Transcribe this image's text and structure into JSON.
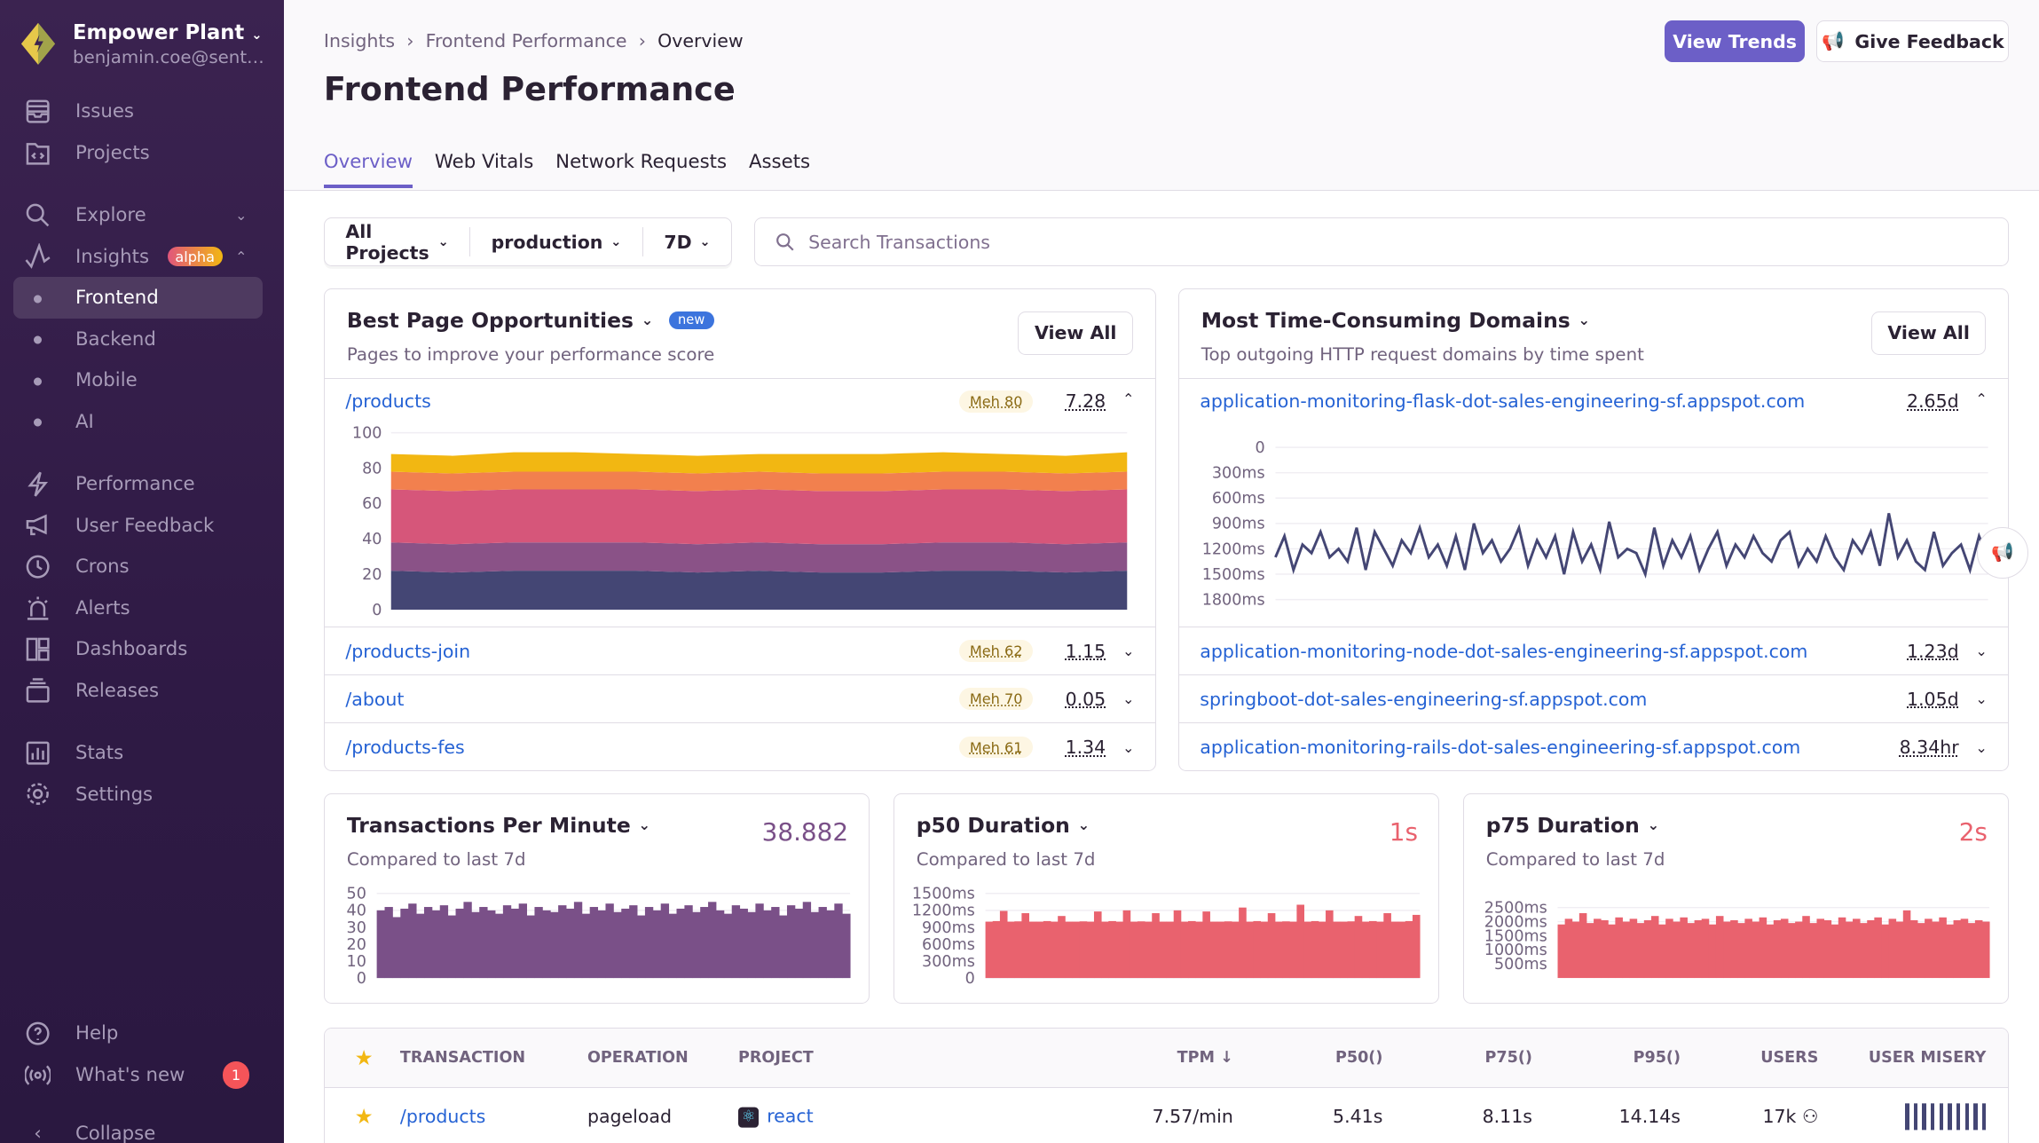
{
  "sidebar": {
    "org_name": "Empower Plant",
    "org_email": "benjamin.coe@sent…",
    "items": [
      {
        "label": "Issues",
        "icon": "inbox-icon"
      },
      {
        "label": "Projects",
        "icon": "folder-code-icon"
      },
      {
        "label": "Explore",
        "icon": "search-icon"
      },
      {
        "label": "Insights",
        "icon": "graph-icon",
        "badge": "alpha"
      },
      {
        "label": "Frontend"
      },
      {
        "label": "Backend"
      },
      {
        "label": "Mobile"
      },
      {
        "label": "AI"
      },
      {
        "label": "Performance",
        "icon": "lightning-icon"
      },
      {
        "label": "User Feedback",
        "icon": "megaphone-icon"
      },
      {
        "label": "Crons",
        "icon": "clock-icon"
      },
      {
        "label": "Alerts",
        "icon": "siren-icon"
      },
      {
        "label": "Dashboards",
        "icon": "dashboard-icon"
      },
      {
        "label": "Releases",
        "icon": "releases-icon"
      },
      {
        "label": "Stats",
        "icon": "stats-icon"
      },
      {
        "label": "Settings",
        "icon": "gear-icon"
      }
    ],
    "help": "Help",
    "whats_new": "What's new",
    "whats_new_count": "1",
    "collapse": "Collapse"
  },
  "header": {
    "breadcrumbs": [
      "Insights",
      "Frontend Performance",
      "Overview"
    ],
    "title": "Frontend Performance",
    "view_trends": "View Trends",
    "give_feedback": "Give Feedback",
    "tabs": [
      "Overview",
      "Web Vitals",
      "Network Requests",
      "Assets"
    ]
  },
  "filters": {
    "project": "All Projects",
    "environment": "production",
    "period": "7D",
    "search_placeholder": "Search Transactions"
  },
  "colors": {
    "accent": "#6c5fc7",
    "link": "#2562d4",
    "tpm": "#7a5088",
    "duration": "#e9626e"
  },
  "page_opportunities": {
    "title": "Best Page Opportunities",
    "badge": "new",
    "subtitle": "Pages to improve your performance score",
    "view_all": "View All",
    "rows": [
      {
        "page": "/products",
        "rating": "Meh 80",
        "score": "7.28",
        "expanded": true
      },
      {
        "page": "/products-join",
        "rating": "Meh 62",
        "score": "1.15"
      },
      {
        "page": "/about",
        "rating": "Meh 70",
        "score": "0.05"
      },
      {
        "page": "/products-fes",
        "rating": "Meh 61",
        "score": "1.34"
      }
    ]
  },
  "domains": {
    "title": "Most Time-Consuming Domains",
    "subtitle": "Top outgoing HTTP request domains by time spent",
    "view_all": "View All",
    "rows": [
      {
        "domain": "application-monitoring-flask-dot-sales-engineering-sf.appspot.com",
        "time": "2.65d",
        "expanded": true
      },
      {
        "domain": "application-monitoring-node-dot-sales-engineering-sf.appspot.com",
        "time": "1.23d"
      },
      {
        "domain": "springboot-dot-sales-engineering-sf.appspot.com",
        "time": "1.05d"
      },
      {
        "domain": "application-monitoring-rails-dot-sales-engineering-sf.appspot.com",
        "time": "8.34hr"
      }
    ]
  },
  "mini_cards": [
    {
      "title": "Transactions Per Minute",
      "subtitle": "Compared to last 7d",
      "value": "38.882"
    },
    {
      "title": "p50 Duration",
      "subtitle": "Compared to last 7d",
      "value": "1s"
    },
    {
      "title": "p75 Duration",
      "subtitle": "Compared to last 7d",
      "value": "2s"
    }
  ],
  "table": {
    "headers": [
      "TRANSACTION",
      "OPERATION",
      "PROJECT",
      "TPM",
      "P50()",
      "P75()",
      "P95()",
      "USERS",
      "USER MISERY"
    ],
    "sort_indicator": "↓",
    "rows": [
      {
        "transaction": "/products",
        "operation": "pageload",
        "project": "react",
        "tpm": "7.57/min",
        "p50": "5.41s",
        "p75": "8.11s",
        "p95": "14.14s",
        "users": "17k",
        "misery_bars": 10
      }
    ]
  },
  "chart_data": [
    {
      "type": "area",
      "stacked": true,
      "ylim": [
        0,
        100
      ],
      "yticks": [
        "0",
        "20",
        "40",
        "60",
        "80",
        "100"
      ],
      "colors": [
        "#444674",
        "#8a5287",
        "#d6567a",
        "#f2804e",
        "#f2b712"
      ],
      "series": [
        {
          "values": [
            22,
            21,
            22,
            22,
            22,
            21,
            22,
            21,
            21,
            22,
            22,
            21,
            22
          ]
        },
        {
          "values": [
            16,
            16,
            16,
            16,
            16,
            16,
            16,
            16,
            16,
            16,
            16,
            16,
            16
          ]
        },
        {
          "values": [
            30,
            30,
            30,
            30,
            30,
            30,
            30,
            30,
            30,
            30,
            30,
            30,
            30
          ]
        },
        {
          "values": [
            10,
            10,
            10,
            10,
            10,
            10,
            10,
            10,
            10,
            10,
            10,
            10,
            10
          ]
        },
        {
          "values": [
            10,
            10,
            11,
            11,
            10,
            10,
            10,
            11,
            11,
            11,
            10,
            10,
            11
          ]
        }
      ]
    },
    {
      "type": "line",
      "ylim": [
        0,
        1800
      ],
      "yticks": [
        "0",
        "300ms",
        "600ms",
        "900ms",
        "1200ms",
        "1500ms",
        "1800ms"
      ],
      "color": "#444674",
      "values": [
        1300,
        1050,
        1450,
        1150,
        1250,
        1000,
        1300,
        1200,
        1350,
        950,
        1450,
        1000,
        1200,
        1400,
        1100,
        1250,
        950,
        1300,
        1150,
        1400,
        1050,
        1450,
        900,
        1250,
        1100,
        1350,
        1200,
        950,
        1400,
        1100,
        1300,
        1050,
        1500,
        1000,
        1350,
        1150,
        1450,
        880,
        1300,
        1200,
        1250,
        1500,
        950,
        1400,
        1100,
        1300,
        1050,
        1450,
        1200,
        1000,
        1400,
        1150,
        1300,
        1050,
        1250,
        1350,
        1100,
        1000,
        1400,
        1200,
        1350,
        1050,
        1300,
        1450,
        1100,
        1250,
        1000,
        1400,
        780,
        1300,
        1100,
        1350,
        1450,
        1000,
        1400,
        1250,
        1150,
        1450,
        1050,
        1300
      ]
    },
    {
      "type": "bar",
      "ylim": [
        0,
        50
      ],
      "yticks": [
        "0",
        "10",
        "20",
        "30",
        "40",
        "50"
      ],
      "color": "#7a5088",
      "values": [
        40,
        42,
        36,
        41,
        44,
        38,
        42,
        40,
        43,
        37,
        41,
        45,
        39,
        42,
        40,
        38,
        43,
        41,
        44,
        37,
        42,
        40,
        39,
        43,
        41,
        45,
        38,
        42,
        40,
        44,
        39,
        41,
        43,
        37,
        42,
        40,
        44,
        38,
        41,
        43,
        39,
        42,
        45,
        40,
        38,
        43,
        41,
        39,
        44,
        40,
        42,
        37,
        43,
        41,
        45,
        39,
        42,
        40,
        44,
        38
      ]
    },
    {
      "type": "bar",
      "ylim": [
        0,
        1500
      ],
      "yticks": [
        "0",
        "300ms",
        "600ms",
        "900ms",
        "1200ms",
        "1500ms"
      ],
      "color": "#e9626e",
      "values": [
        1000,
        1010,
        1190,
        1000,
        1005,
        1150,
        1000,
        1000,
        1010,
        1000,
        1100,
        1000,
        1000,
        1005,
        1000,
        1180,
        1000,
        1010,
        1000,
        1200,
        1000,
        1005,
        1000,
        1150,
        1000,
        1000,
        1200,
        1000,
        1010,
        1000,
        1180,
        1000,
        1000,
        1005,
        1000,
        1250,
        1000,
        1010,
        1000,
        1150,
        1000,
        1005,
        1000,
        1300,
        1000,
        1010,
        1000,
        1200,
        1000,
        1000,
        1005,
        1100,
        1000,
        1010,
        1000,
        1150,
        1000,
        1000,
        1010,
        1120
      ]
    },
    {
      "type": "bar",
      "ylim": [
        0,
        3000
      ],
      "yticks": [
        "500ms",
        "1000ms",
        "1500ms",
        "2000ms",
        "2500ms"
      ],
      "color": "#e9626e",
      "values": [
        1900,
        2100,
        2000,
        2300,
        1950,
        2100,
        2050,
        1900,
        2150,
        2000,
        2100,
        1950,
        2050,
        2200,
        1900,
        2100,
        2000,
        2150,
        1950,
        2050,
        2100,
        1900,
        2200,
        2000,
        2050,
        1950,
        2100,
        2000,
        2150,
        1900,
        2050,
        2100,
        1950,
        2000,
        2200,
        1950,
        2100,
        2050,
        1900,
        2150,
        2000,
        2100,
        1950,
        2050,
        2150,
        1900,
        2100,
        2000,
        2400,
        2050,
        1950,
        2100,
        2000,
        2150,
        1900,
        2050,
        2100,
        1950,
        2050,
        2000
      ]
    }
  ]
}
